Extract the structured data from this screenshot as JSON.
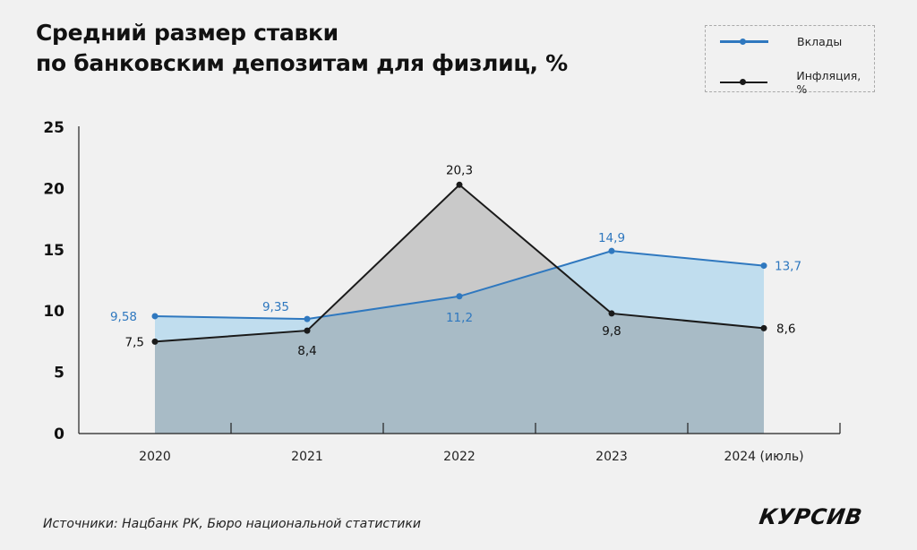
{
  "chart_data": {
    "type": "area",
    "title_lines": [
      "Средний размер ставки",
      "по банковским депозитам для физлиц, %"
    ],
    "categories": [
      "2020",
      "2021",
      "2022",
      "2023",
      "2024 (июль)"
    ],
    "ylim": [
      0,
      25
    ],
    "yticks": [
      0,
      5,
      10,
      15,
      20,
      25
    ],
    "legend_position": "top-right",
    "series": [
      {
        "name": "Вклады",
        "color": "#2f78bf",
        "fill": "#c0ddee",
        "values": [
          9.58,
          9.35,
          11.2,
          14.9,
          13.7
        ],
        "labels": [
          "9,58",
          "9,35",
          "11,2",
          "14,9",
          "13,7"
        ]
      },
      {
        "name": "Инфляция, %",
        "color": "#1a1a1a",
        "fill": "#c9c9c9",
        "values": [
          7.5,
          8.4,
          20.3,
          9.8,
          8.6
        ],
        "labels": [
          "7,5",
          "8,4",
          "20,3",
          "9,8",
          "8,6"
        ]
      }
    ],
    "overlap_fill": "#a8bbc6"
  },
  "source": "Источники: Нацбанк РК, Бюро национальной статистики",
  "logo": "КУРСИВ"
}
